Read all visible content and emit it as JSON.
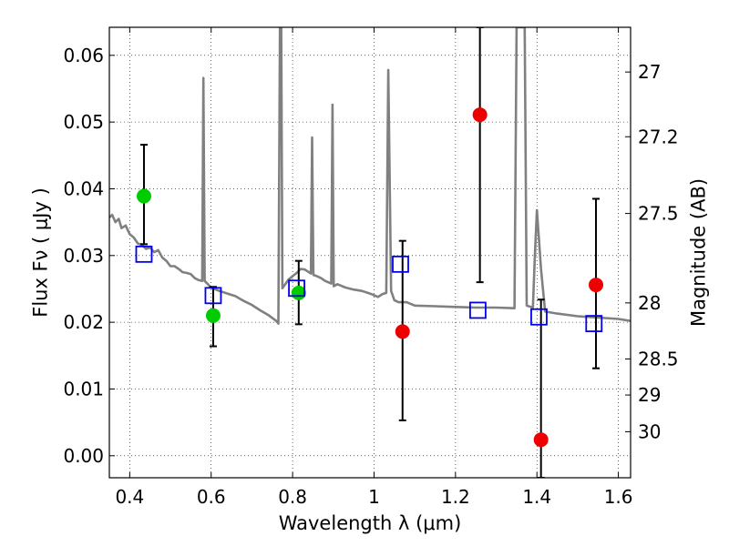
{
  "chart_data": {
    "type": "scatter",
    "xlabel": "Wavelength  λ (μm)",
    "ylabel": "Flux  Fν  ( μJy )",
    "y2label": "Magnitude (AB)",
    "xlim": [
      0.35,
      1.63
    ],
    "ylim": [
      -0.0033,
      0.0642
    ],
    "grid": true,
    "legend": "none",
    "x_ticks": [
      0.4,
      0.6,
      0.8,
      1.0,
      1.2,
      1.4,
      1.6
    ],
    "x_tick_labels": [
      "0.4",
      "0.6",
      "0.8",
      "1",
      "1.2",
      "1.4",
      "1.6"
    ],
    "y_ticks": [
      0.0,
      0.01,
      0.02,
      0.03,
      0.04,
      0.05,
      0.06
    ],
    "y_tick_labels": [
      "0.00",
      "0.01",
      "0.02",
      "0.03",
      "0.04",
      "0.05",
      "0.06"
    ],
    "y2_ticks": [
      {
        "label": "27",
        "flux": 0.0575
      },
      {
        "label": "27.2",
        "flux": 0.0478
      },
      {
        "label": "27.5",
        "flux": 0.0363
      },
      {
        "label": "28",
        "flux": 0.0229
      },
      {
        "label": "28.5",
        "flux": 0.0145
      },
      {
        "label": "29",
        "flux": 0.0091
      },
      {
        "label": "30",
        "flux": 0.0036
      }
    ],
    "colors": {
      "model_spectrum": "#808080",
      "green_points": "#00cc00",
      "red_points": "#ee0000",
      "model_photometry": "#0000ee",
      "error_bars": "#000000"
    },
    "series": [
      {
        "marker": "line",
        "x": [
          0.35,
          0.357,
          0.365,
          0.373,
          0.38,
          0.39,
          0.4,
          0.41,
          0.42,
          0.43,
          0.44,
          0.45,
          0.46,
          0.47,
          0.48,
          0.49,
          0.5,
          0.51,
          0.52,
          0.53,
          0.54,
          0.55,
          0.56,
          0.57,
          0.578,
          0.581,
          0.584,
          0.6,
          0.62,
          0.64,
          0.66,
          0.68,
          0.7,
          0.72,
          0.74,
          0.76,
          0.765,
          0.769,
          0.772,
          0.775,
          0.79,
          0.8,
          0.81,
          0.82,
          0.83,
          0.845,
          0.848,
          0.851,
          0.86,
          0.87,
          0.88,
          0.895,
          0.898,
          0.901,
          0.91,
          0.93,
          0.95,
          0.97,
          0.99,
          1.01,
          1.02,
          1.03,
          1.035,
          1.042,
          1.05,
          1.06,
          1.08,
          1.1,
          1.15,
          1.2,
          1.25,
          1.3,
          1.345,
          1.35,
          1.355,
          1.36,
          1.365,
          1.37,
          1.375,
          1.39,
          1.395,
          1.4,
          1.41,
          1.42,
          1.45,
          1.5,
          1.55,
          1.6,
          1.63
        ],
        "y": [
          0.0357,
          0.0361,
          0.035,
          0.0355,
          0.0341,
          0.0345,
          0.0332,
          0.0327,
          0.0318,
          0.0316,
          0.031,
          0.0312,
          0.0305,
          0.0308,
          0.0297,
          0.0292,
          0.0284,
          0.0284,
          0.028,
          0.0275,
          0.0274,
          0.0272,
          0.0266,
          0.0263,
          0.0262,
          0.0566,
          0.0262,
          0.0252,
          0.0247,
          0.0243,
          0.0239,
          0.0232,
          0.0226,
          0.0218,
          0.0211,
          0.0202,
          0.0198,
          0.0642,
          0.0642,
          0.0251,
          0.0264,
          0.0269,
          0.0274,
          0.028,
          0.0279,
          0.0273,
          0.0477,
          0.0271,
          0.0269,
          0.0266,
          0.0262,
          0.0258,
          0.0526,
          0.0254,
          0.0257,
          0.0252,
          0.0249,
          0.0247,
          0.0243,
          0.0238,
          0.0242,
          0.0244,
          0.0578,
          0.0247,
          0.0233,
          0.023,
          0.023,
          0.0225,
          0.0224,
          0.0223,
          0.0222,
          0.0222,
          0.0221,
          0.0642,
          0.0642,
          0.0642,
          0.0642,
          0.0642,
          0.0225,
          0.0222,
          0.0301,
          0.0368,
          0.028,
          0.0216,
          0.0213,
          0.0209,
          0.0207,
          0.0205,
          0.0202
        ]
      },
      {
        "marker": "green-circle",
        "x": [
          0.435,
          0.605,
          0.815
        ],
        "y": [
          0.0389,
          0.021,
          0.0244
        ]
      },
      {
        "marker": "red-circle",
        "x": [
          1.07,
          1.26,
          1.41,
          1.545
        ],
        "y": [
          0.0186,
          0.0511,
          0.0024,
          0.0256
        ]
      },
      {
        "marker": "blue-open-square",
        "x": [
          0.435,
          0.605,
          0.81,
          1.065,
          1.255,
          1.405,
          1.54
        ],
        "y": [
          0.0302,
          0.024,
          0.0251,
          0.0287,
          0.0218,
          0.0208,
          0.0198
        ]
      },
      {
        "marker": "error-bar",
        "x": [
          0.435,
          0.605,
          0.815,
          1.07,
          1.26,
          1.41,
          1.545
        ],
        "y_low": [
          0.0317,
          0.0164,
          0.0197,
          0.0053,
          0.026,
          -0.0033,
          0.0131
        ],
        "y_high": [
          0.0466,
          0.0253,
          0.0292,
          0.0322,
          0.0642,
          0.0234,
          0.0385
        ]
      }
    ]
  }
}
